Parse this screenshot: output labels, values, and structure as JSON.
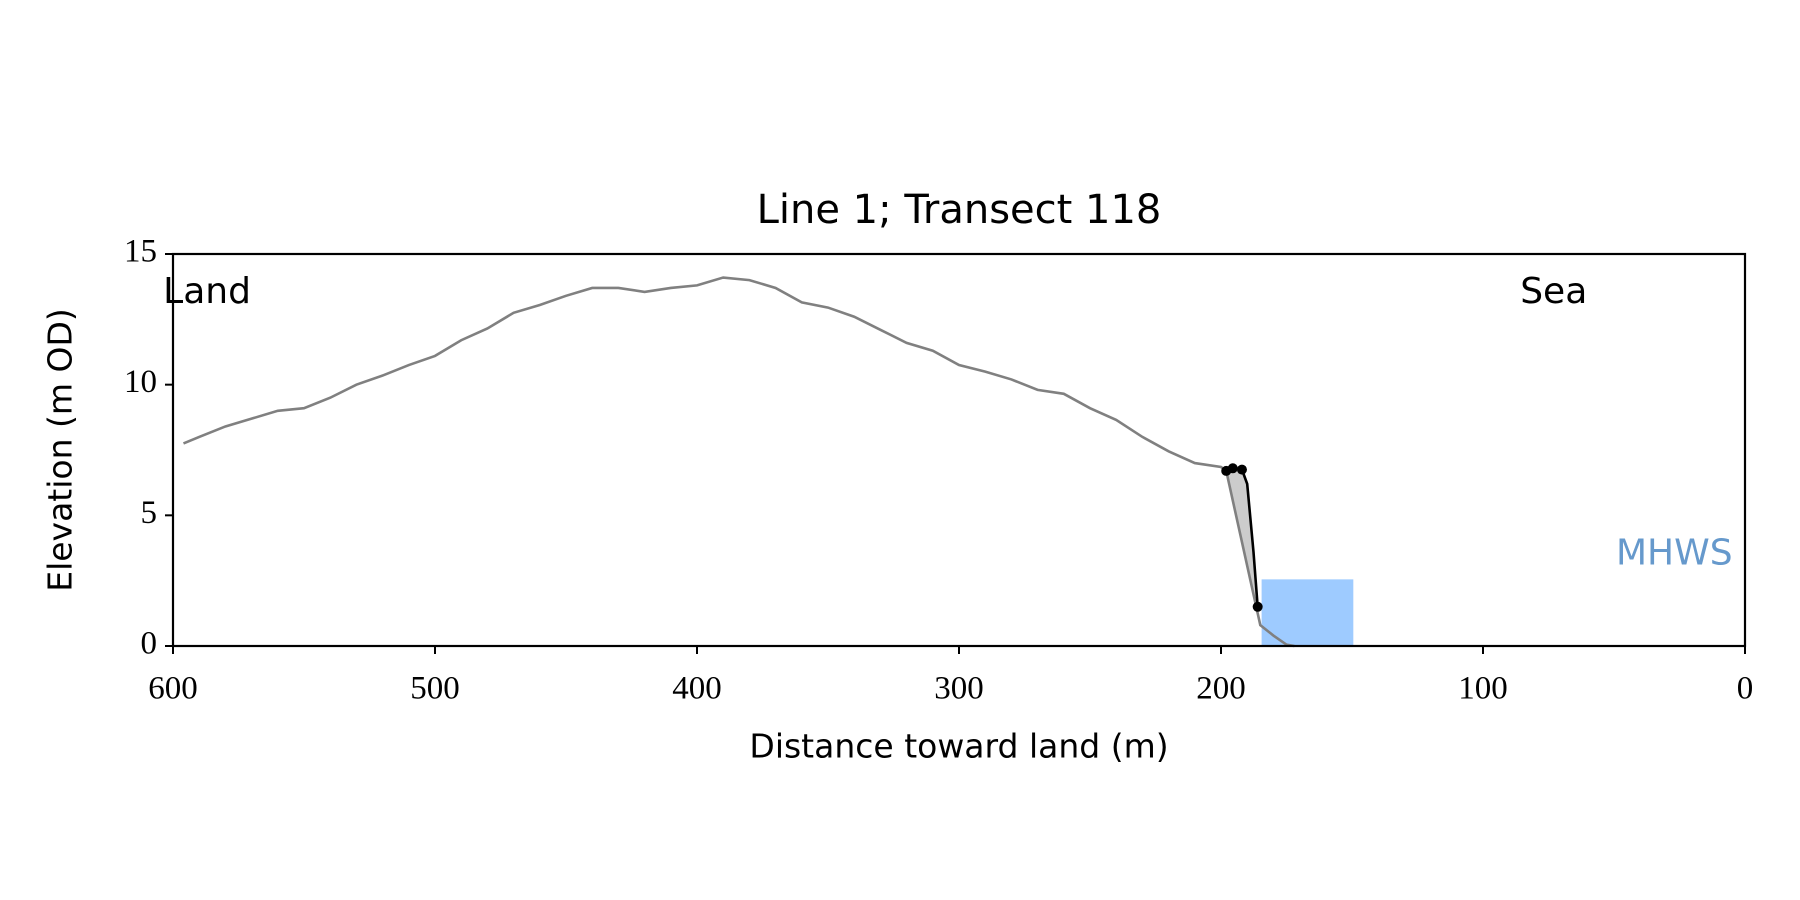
{
  "chart_data": {
    "type": "line",
    "title": "Line 1; Transect 118",
    "xlabel": "Distance toward land (m)",
    "ylabel": "Elevation (m OD)",
    "annotations": [
      {
        "text": "Land",
        "x": 587,
        "y": 13.5
      },
      {
        "text": "Sea",
        "x": 73,
        "y": 13.5
      },
      {
        "text": "MHWS",
        "x": 27,
        "y": 3.5,
        "color": "#6699cc"
      }
    ],
    "xlim": [
      600,
      0
    ],
    "ylim": [
      0,
      15
    ],
    "xticks": [
      600,
      500,
      400,
      300,
      200,
      100,
      0
    ],
    "yticks": [
      0,
      5,
      10,
      15
    ],
    "series": [
      {
        "color": "#808080",
        "markers": false,
        "x": [
          596,
          590,
          580,
          570,
          560,
          550,
          540,
          530,
          520,
          510,
          500,
          490,
          480,
          470,
          460,
          450,
          440,
          430,
          420,
          410,
          400,
          390,
          380,
          370,
          360,
          350,
          340,
          330,
          320,
          310,
          300,
          290,
          280,
          270,
          260,
          250,
          240,
          230,
          220,
          210,
          200,
          198,
          185,
          180,
          175,
          172
        ],
        "values": [
          7.75,
          8.0,
          8.4,
          8.7,
          9.0,
          9.1,
          9.5,
          10.0,
          10.35,
          10.75,
          11.1,
          11.7,
          12.15,
          12.75,
          13.05,
          13.4,
          13.7,
          13.7,
          13.55,
          13.7,
          13.8,
          14.1,
          14.0,
          13.7,
          13.15,
          12.95,
          12.6,
          12.1,
          11.6,
          11.3,
          10.75,
          10.5,
          10.2,
          9.8,
          9.65,
          9.1,
          8.65,
          8.0,
          7.45,
          7.0,
          6.85,
          6.7,
          0.8,
          0.4,
          0.05,
          0
        ]
      },
      {
        "color": "#000000",
        "markers": true,
        "x": [
          198,
          195.5,
          192,
          190,
          187.6,
          186
        ],
        "values": [
          6.7,
          6.8,
          6.75,
          6.2,
          3.6,
          1.5
        ]
      }
    ],
    "band": {
      "x": [
        184.5,
        149.5
      ],
      "height": 2.55,
      "color": "#9ecbff"
    },
    "shade_color": "#cccccc"
  }
}
